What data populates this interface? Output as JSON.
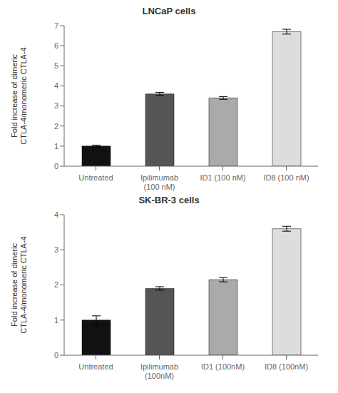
{
  "chart_data": [
    {
      "type": "bar",
      "title": "LNCaP cells",
      "categories": [
        "Untreated",
        "Ipilimumab\n(100 nM)",
        "ID1 (100 nM)",
        "ID8 (100 nM)"
      ],
      "values": [
        1.0,
        3.6,
        3.4,
        6.7
      ],
      "errors": [
        0.05,
        0.08,
        0.07,
        0.12
      ],
      "colors": [
        "#111111",
        "#555555",
        "#aaaaaa",
        "#dddddd"
      ],
      "ylabel": "Fold increase of dimeric\nCTLA-4/monomeric CTLA-4",
      "ylim": [
        0,
        7
      ],
      "yticks": [
        0,
        1,
        2,
        3,
        4,
        5,
        6,
        7
      ]
    },
    {
      "type": "bar",
      "title": "SK-BR-3 cells",
      "categories": [
        "Untreated",
        "Ipilimumab\n(100nM)",
        "ID1 (100nM)",
        "ID8 (100nM)"
      ],
      "values": [
        1.0,
        1.9,
        2.15,
        3.6
      ],
      "errors": [
        0.12,
        0.05,
        0.06,
        0.07
      ],
      "colors": [
        "#111111",
        "#555555",
        "#aaaaaa",
        "#dddddd"
      ],
      "ylabel": "Fold increase of dimeric\nCTLA-4/monomeric CTLA-4",
      "ylim": [
        0,
        4
      ],
      "yticks": [
        0,
        1,
        2,
        3,
        4
      ]
    }
  ]
}
